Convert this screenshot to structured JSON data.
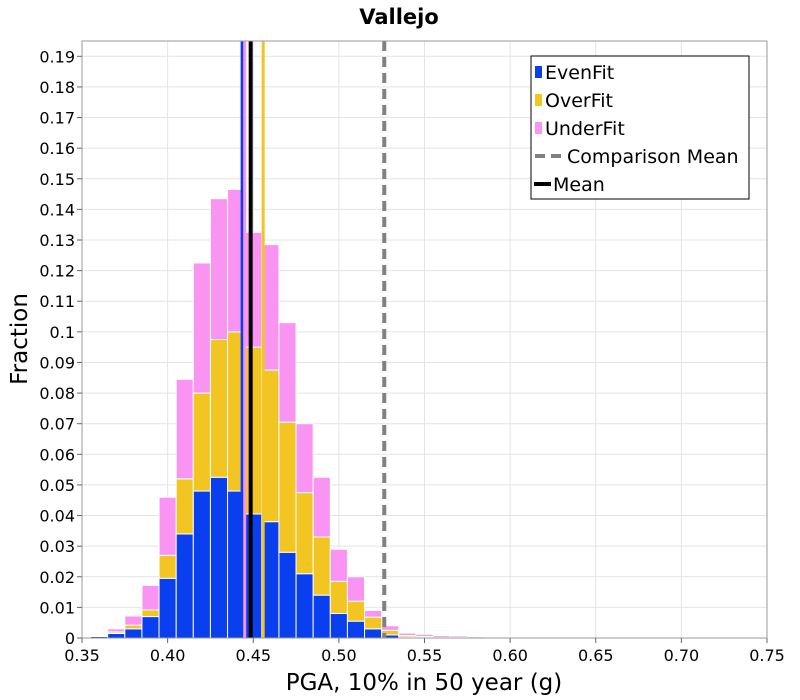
{
  "chart_data": {
    "type": "bar",
    "stacked": true,
    "title": "Vallejo",
    "xlabel": "PGA, 10% in 50 year (g)",
    "ylabel": "Fraction",
    "xlim": [
      0.35,
      0.75
    ],
    "ylim": [
      0,
      0.195
    ],
    "bin_width": 0.01,
    "grid": true,
    "legend_position": "top-right",
    "x_ticks": [
      "0.35",
      "0.40",
      "0.45",
      "0.50",
      "0.55",
      "0.60",
      "0.65",
      "0.70",
      "0.75"
    ],
    "x_tick_values": [
      0.35,
      0.4,
      0.45,
      0.5,
      0.55,
      0.6,
      0.65,
      0.7,
      0.75
    ],
    "y_ticks": [
      "0",
      "0.01",
      "0.02",
      "0.03",
      "0.04",
      "0.05",
      "0.06",
      "0.07",
      "0.08",
      "0.09",
      "0.1",
      "0.11",
      "0.12",
      "0.13",
      "0.14",
      "0.15",
      "0.16",
      "0.17",
      "0.18",
      "0.19"
    ],
    "y_tick_values": [
      0,
      0.01,
      0.02,
      0.03,
      0.04,
      0.05,
      0.06,
      0.07,
      0.08,
      0.09,
      0.1,
      0.11,
      0.12,
      0.13,
      0.14,
      0.15,
      0.16,
      0.17,
      0.18,
      0.19
    ],
    "bin_centers": [
      0.36,
      0.37,
      0.38,
      0.39,
      0.4,
      0.41,
      0.42,
      0.43,
      0.44,
      0.45,
      0.46,
      0.47,
      0.48,
      0.49,
      0.5,
      0.51,
      0.52,
      0.53,
      0.54,
      0.55,
      0.56,
      0.57,
      0.58,
      0.59,
      0.6,
      0.61
    ],
    "series": [
      {
        "name": "EvenFit",
        "color": "#0a3ff0",
        "values": [
          0.0005,
          0.0015,
          0.003,
          0.007,
          0.0195,
          0.034,
          0.048,
          0.0525,
          0.048,
          0.0405,
          0.038,
          0.028,
          0.021,
          0.014,
          0.008,
          0.0055,
          0.003,
          0.001,
          0.0003,
          0.0002,
          0.0001,
          0.0001,
          0,
          0,
          0,
          0
        ]
      },
      {
        "name": "OverFit",
        "color": "#f2c522",
        "values": [
          0.0002,
          0.0005,
          0.0012,
          0.0022,
          0.0075,
          0.018,
          0.032,
          0.045,
          0.052,
          0.0545,
          0.0495,
          0.0425,
          0.0265,
          0.019,
          0.0105,
          0.0065,
          0.0038,
          0.0015,
          0.0005,
          0.0003,
          0.0001,
          0.0001,
          0,
          0,
          0,
          0
        ]
      },
      {
        "name": "UnderFit",
        "color": "#f994f3",
        "values": [
          0.0003,
          0.001,
          0.003,
          0.008,
          0.019,
          0.0325,
          0.0425,
          0.046,
          0.0465,
          0.0375,
          0.041,
          0.0325,
          0.0225,
          0.0195,
          0.0105,
          0.008,
          0.0022,
          0.0015,
          0.0008,
          0.0007,
          0.0006,
          0.0005,
          0.0004,
          0.0003,
          0.0002,
          0.0001
        ]
      }
    ],
    "vlines": [
      {
        "name": "Comparison Mean",
        "x": 0.5265,
        "color": "#808080",
        "style": "dashed"
      },
      {
        "name": "Mean",
        "x": 0.4485,
        "color": "#000000",
        "style": "solid"
      },
      {
        "name": "EvenFit mean",
        "x": 0.4435,
        "color": "#0a3ff0",
        "style": "solid",
        "in_legend": false
      },
      {
        "name": "UnderFit mean",
        "x": 0.445,
        "color": "#f994f3",
        "style": "solid",
        "in_legend": false
      },
      {
        "name": "OverFit mean",
        "x": 0.4558,
        "color": "#f2c522",
        "style": "solid",
        "in_legend": false
      }
    ],
    "legend": [
      {
        "label": "EvenFit",
        "kind": "box",
        "color": "#0a3ff0"
      },
      {
        "label": "OverFit",
        "kind": "box",
        "color": "#f2c522"
      },
      {
        "label": "UnderFit",
        "kind": "box",
        "color": "#f994f3"
      },
      {
        "label": "Comparison Mean",
        "kind": "dash",
        "color": "#808080"
      },
      {
        "label": "Mean",
        "kind": "line",
        "color": "#000000"
      }
    ]
  }
}
